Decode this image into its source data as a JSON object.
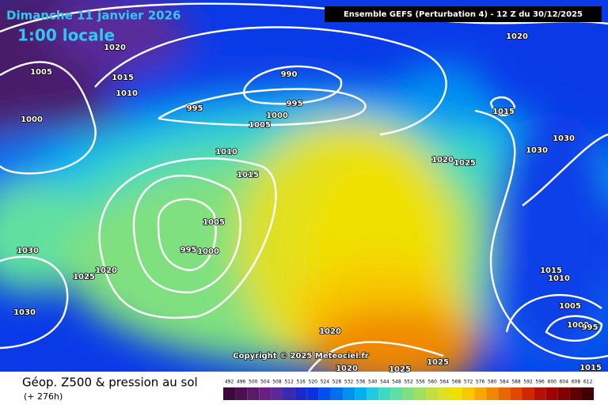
{
  "header": {
    "title": "Dimanche 11 janvier 2026",
    "time": "1:00 locale",
    "model": "Ensemble GEFS  (Perturbation 4)  -  12 Z du 30/12/2025"
  },
  "map": {
    "copyright": "Copyright © 2025 Meteociel.fr",
    "isobar_labels": [
      "1020",
      "1005",
      "1015",
      "1010",
      "1000",
      "990",
      "995",
      "995",
      "1000",
      "1005",
      "1020",
      "1015",
      "1030",
      "1030",
      "1010",
      "1015",
      "1020",
      "1025",
      "1005",
      "995",
      "1000",
      "1030",
      "1025",
      "1020",
      "1030",
      "1015",
      "1010",
      "1005",
      "1000",
      "995",
      "1020",
      "1020",
      "1025",
      "1025",
      "1015"
    ]
  },
  "footer": {
    "title": "Géop. Z500 & pression au sol",
    "lead": "(+ 276h)"
  },
  "legend": {
    "levels": [
      492,
      496,
      500,
      504,
      508,
      512,
      516,
      520,
      524,
      528,
      532,
      536,
      540,
      544,
      548,
      552,
      556,
      560,
      564,
      568,
      572,
      576,
      580,
      584,
      588,
      592,
      596,
      600,
      604,
      608,
      612
    ],
    "colors": [
      "#3a0a3a",
      "#4a1050",
      "#5a1a6a",
      "#6a2080",
      "#5a2a9a",
      "#3a2ab0",
      "#1a2ac8",
      "#0a30e0",
      "#0050f0",
      "#0070f0",
      "#0090f0",
      "#00b0f0",
      "#20c8e0",
      "#40d8c0",
      "#60e0a0",
      "#80e080",
      "#a0e060",
      "#c0e040",
      "#e0e020",
      "#f0e000",
      "#f8c800",
      "#f8a800",
      "#f08800",
      "#e86800",
      "#e04800",
      "#d02800",
      "#b81000",
      "#a00000",
      "#800000",
      "#600000",
      "#400000"
    ]
  }
}
